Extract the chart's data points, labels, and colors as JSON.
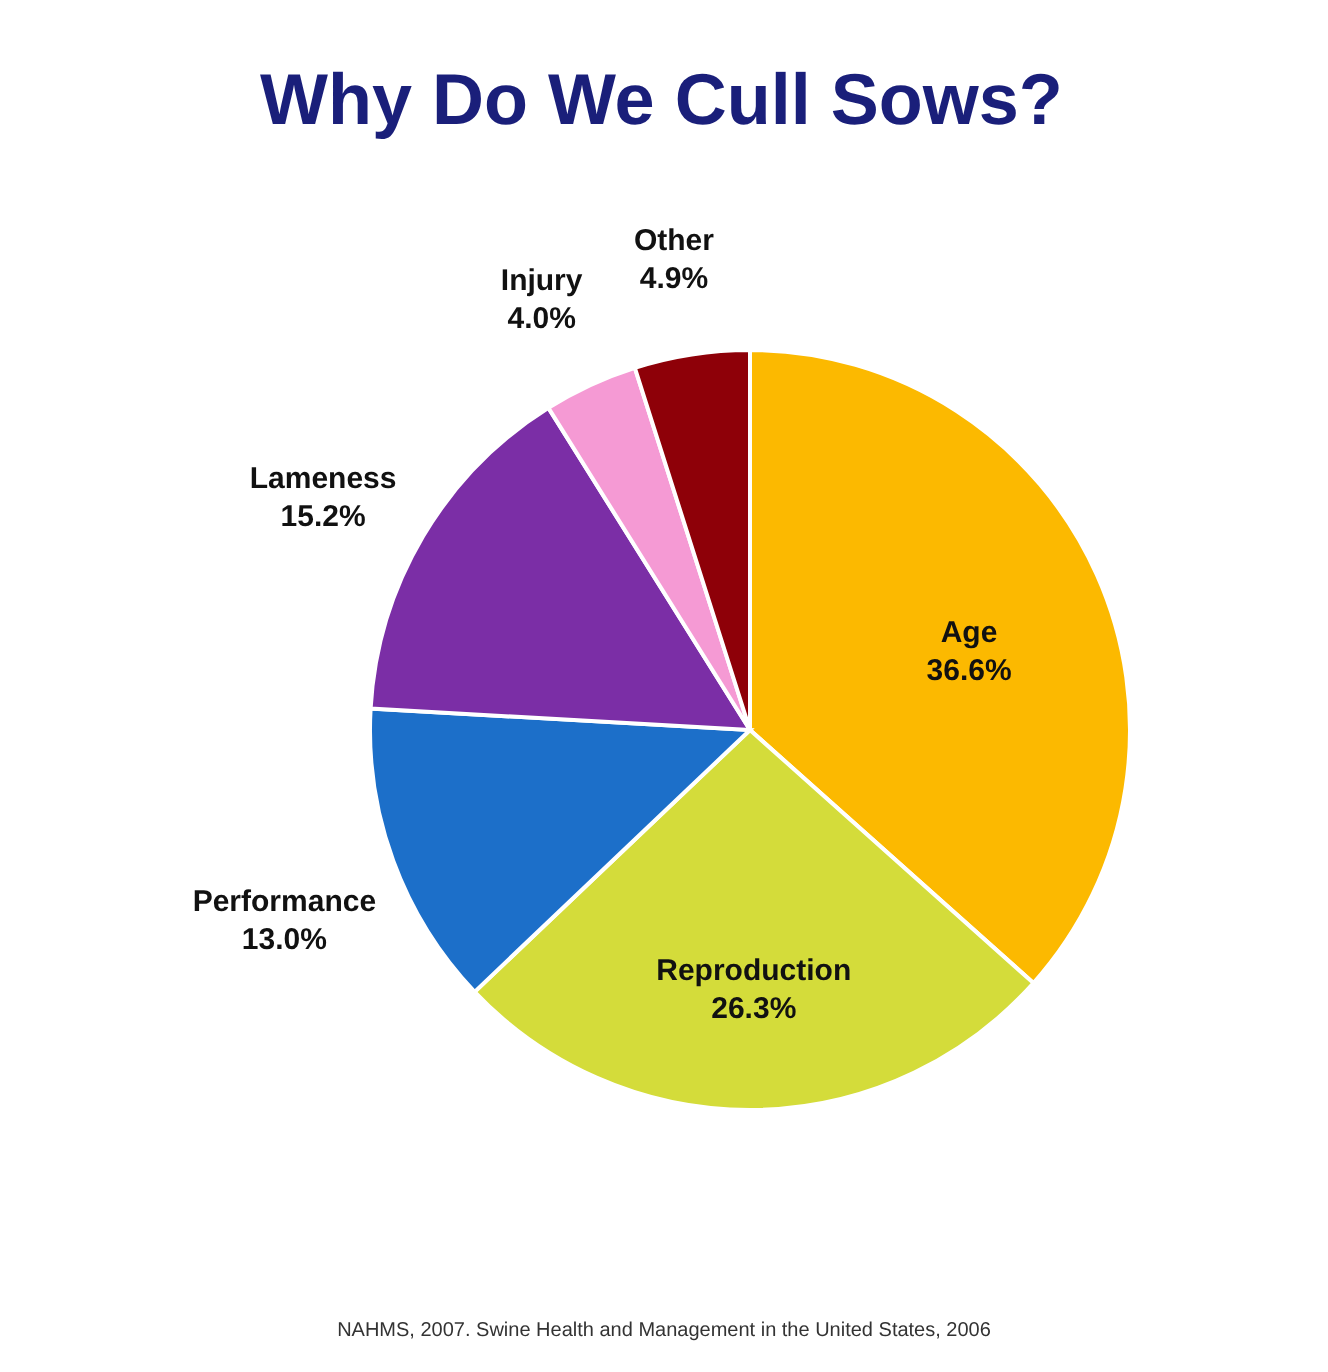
{
  "chart_data": {
    "type": "pie",
    "title": "Why Do We Cull Sows?",
    "categories": [
      "Age",
      "Reproduction",
      "Performance",
      "Lameness",
      "Injury",
      "Other"
    ],
    "values": [
      36.6,
      26.3,
      13.0,
      15.2,
      4.0,
      4.9
    ],
    "value_labels": [
      "36.6%",
      "26.3%",
      "13.0%",
      "15.2%",
      "4.0%",
      "4.9%"
    ],
    "colors": [
      "#fcb900",
      "#d4dc3a",
      "#1c6fc9",
      "#7b2ea6",
      "#f59ad4",
      "#8e0008"
    ],
    "legend": false,
    "annotations": [
      "NAHMS, 2007. Swine Health and Management in the United States, 2006"
    ]
  }
}
